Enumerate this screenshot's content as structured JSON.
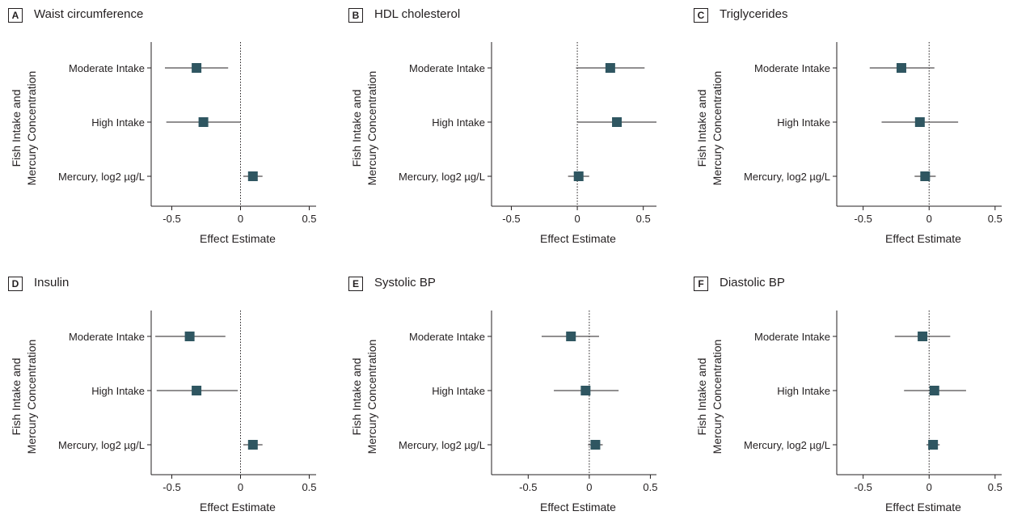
{
  "style": {
    "marker_color": "#2f5661",
    "line_color": "#231f20",
    "text_color": "#231f20"
  },
  "y_axis_label": [
    "Fish Intake and",
    "Mercury Concentration"
  ],
  "x_axis_label": "Effect Estimate",
  "categories": [
    "Moderate Intake",
    "High Intake",
    "Mercury, log2 µg/L"
  ],
  "chart_data": [
    {
      "type": "forest",
      "letter": "A",
      "title": "Waist circumference",
      "xlabel": "Effect Estimate",
      "ylabel": "Fish Intake and Mercury Concentration",
      "categories": [
        "Moderate Intake",
        "High Intake",
        "Mercury, log2 µg/L"
      ],
      "xlim": [
        -0.65,
        0.55
      ],
      "xticks": [
        -0.5,
        0,
        0.5
      ],
      "xtick_labels": [
        "-0.5",
        "0",
        "0.5"
      ],
      "reference_line": 0,
      "estimates": [
        -0.32,
        -0.27,
        0.09
      ],
      "lower": [
        -0.55,
        -0.54,
        0.02
      ],
      "upper": [
        -0.09,
        0.0,
        0.16
      ]
    },
    {
      "type": "forest",
      "letter": "B",
      "title": "HDL cholesterol",
      "xlabel": "Effect Estimate",
      "ylabel": "Fish Intake and Mercury Concentration",
      "categories": [
        "Moderate Intake",
        "High Intake",
        "Mercury, log2 µg/L"
      ],
      "xlim": [
        -0.65,
        0.6
      ],
      "xticks": [
        -0.5,
        0,
        0.5
      ],
      "xtick_labels": [
        "-0.5",
        "0",
        "0.5"
      ],
      "reference_line": 0,
      "estimates": [
        0.25,
        0.3,
        0.01
      ],
      "lower": [
        -0.01,
        0.0,
        -0.07
      ],
      "upper": [
        0.51,
        0.6,
        0.09
      ]
    },
    {
      "type": "forest",
      "letter": "C",
      "title": "Triglycerides",
      "xlabel": "Effect Estimate",
      "ylabel": "Fish Intake and Mercury Concentration",
      "categories": [
        "Moderate Intake",
        "High Intake",
        "Mercury, log2 µg/L"
      ],
      "xlim": [
        -0.7,
        0.55
      ],
      "xticks": [
        -0.5,
        0,
        0.5
      ],
      "xtick_labels": [
        "-0.5",
        "0",
        "0.5"
      ],
      "reference_line": 0,
      "estimates": [
        -0.21,
        -0.07,
        -0.03
      ],
      "lower": [
        -0.45,
        -0.36,
        -0.11
      ],
      "upper": [
        0.04,
        0.22,
        0.05
      ]
    },
    {
      "type": "forest",
      "letter": "D",
      "title": "Insulin",
      "xlabel": "Effect Estimate",
      "ylabel": "Fish Intake and Mercury Concentration",
      "categories": [
        "Moderate Intake",
        "High Intake",
        "Mercury, log2 µg/L"
      ],
      "xlim": [
        -0.65,
        0.55
      ],
      "xticks": [
        -0.5,
        0,
        0.5
      ],
      "xtick_labels": [
        "-0.5",
        "0",
        "0.5"
      ],
      "reference_line": 0,
      "estimates": [
        -0.37,
        -0.32,
        0.09
      ],
      "lower": [
        -0.62,
        -0.61,
        0.02
      ],
      "upper": [
        -0.11,
        -0.02,
        0.16
      ]
    },
    {
      "type": "forest",
      "letter": "E",
      "title": "Systolic BP",
      "xlabel": "Effect Estimate",
      "ylabel": "Fish Intake and Mercury Concentration",
      "categories": [
        "Moderate Intake",
        "High Intake",
        "Mercury, log2 µg/L"
      ],
      "xlim": [
        -0.8,
        0.55
      ],
      "xticks": [
        -0.5,
        0,
        0.5
      ],
      "xtick_labels": [
        "-0.5",
        "0",
        "0.5"
      ],
      "reference_line": 0,
      "estimates": [
        -0.15,
        -0.03,
        0.05
      ],
      "lower": [
        -0.39,
        -0.29,
        -0.01
      ],
      "upper": [
        0.08,
        0.24,
        0.11
      ]
    },
    {
      "type": "forest",
      "letter": "F",
      "title": "Diastolic BP",
      "xlabel": "Effect Estimate",
      "ylabel": "Fish Intake and Mercury Concentration",
      "categories": [
        "Moderate Intake",
        "High Intake",
        "Mercury, log2 µg/L"
      ],
      "xlim": [
        -0.7,
        0.55
      ],
      "xticks": [
        -0.5,
        0,
        0.5
      ],
      "xtick_labels": [
        "-0.5",
        "0",
        "0.5"
      ],
      "reference_line": 0,
      "estimates": [
        -0.05,
        0.04,
        0.03
      ],
      "lower": [
        -0.26,
        -0.19,
        -0.02
      ],
      "upper": [
        0.16,
        0.28,
        0.08
      ]
    }
  ]
}
